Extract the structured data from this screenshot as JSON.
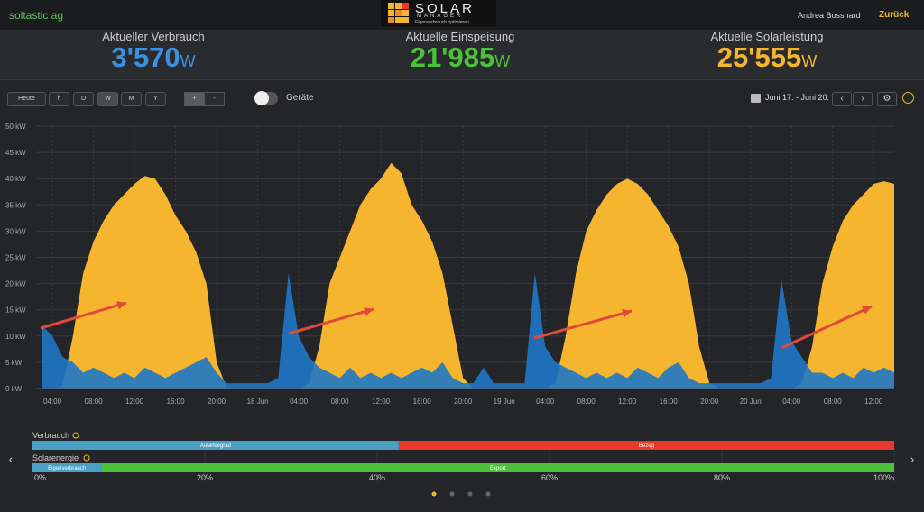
{
  "header": {
    "brand": "soltastic ag",
    "logo_title": "SOLAR",
    "logo_subtitle": "MANAGER",
    "logo_tagline": "Eigenverbrauch optimieren",
    "user": "Andrea Bosshard",
    "back": "Zurück"
  },
  "stats": [
    {
      "label": "Aktueller Verbrauch",
      "value": "3'570",
      "unit": "W",
      "color": "#3d8fe0"
    },
    {
      "label": "Aktuelle Einspeisung",
      "value": "21'985",
      "unit": "W",
      "color": "#4cc13a"
    },
    {
      "label": "Aktuelle Solarleistung",
      "value": "25'555",
      "unit": "W",
      "color": "#f5b52e"
    }
  ],
  "controls": {
    "periods": [
      "Heute",
      "h",
      "D",
      "W",
      "M",
      "Y"
    ],
    "zoom": [
      "+",
      "-"
    ],
    "toggle": "Geräte",
    "range": "Juni 17. - Juni 20."
  },
  "chart_data": {
    "type": "area",
    "ylim": [
      0,
      50
    ],
    "yticks": [
      {
        "value": 0,
        "label": "0 kW"
      },
      {
        "value": 5,
        "label": "5 kW"
      },
      {
        "value": 10,
        "label": "10 kW"
      },
      {
        "value": 15,
        "label": "15 kW"
      },
      {
        "value": 20,
        "label": "20 kW"
      },
      {
        "value": 25,
        "label": "25 kW"
      },
      {
        "value": 30,
        "label": "30 kW"
      },
      {
        "value": 35,
        "label": "35 kW"
      },
      {
        "value": 40,
        "label": "40 kW"
      },
      {
        "value": 45,
        "label": "45 kW"
      },
      {
        "value": 50,
        "label": "50 kW"
      }
    ],
    "xlim": [
      2.5,
      86
    ],
    "xticks": [
      {
        "value": 4,
        "label": "04:00"
      },
      {
        "value": 8,
        "label": "08:00"
      },
      {
        "value": 12,
        "label": "12:00"
      },
      {
        "value": 16,
        "label": "16:00"
      },
      {
        "value": 20,
        "label": "20:00"
      },
      {
        "value": 24,
        "label": "18 Jun"
      },
      {
        "value": 28,
        "label": "04:00"
      },
      {
        "value": 32,
        "label": "08:00"
      },
      {
        "value": 36,
        "label": "12:00"
      },
      {
        "value": 40,
        "label": "16:00"
      },
      {
        "value": 44,
        "label": "20:00"
      },
      {
        "value": 48,
        "label": "19 Jun"
      },
      {
        "value": 52,
        "label": "04:00"
      },
      {
        "value": 56,
        "label": "08:00"
      },
      {
        "value": 60,
        "label": "12:00"
      },
      {
        "value": 64,
        "label": "16:00"
      },
      {
        "value": 68,
        "label": "20:00"
      },
      {
        "value": 72,
        "label": "20 Jun"
      },
      {
        "value": 76,
        "label": "04:00"
      },
      {
        "value": 80,
        "label": "08:00"
      },
      {
        "value": 84,
        "label": "12:00"
      }
    ],
    "grid": true,
    "x": [
      3,
      4,
      5,
      6,
      7,
      8,
      9,
      10,
      11,
      12,
      13,
      14,
      15,
      16,
      17,
      18,
      19,
      20,
      21,
      22,
      23,
      24,
      25,
      26,
      27,
      28,
      29,
      30,
      31,
      32,
      33,
      34,
      35,
      36,
      37,
      38,
      39,
      40,
      41,
      42,
      43,
      44,
      45,
      46,
      47,
      48,
      49,
      50,
      51,
      52,
      53,
      54,
      55,
      56,
      57,
      58,
      59,
      60,
      61,
      62,
      63,
      64,
      65,
      66,
      67,
      68,
      69,
      70,
      71,
      72,
      73,
      74,
      75,
      76,
      77,
      78,
      79,
      80,
      81,
      82,
      83,
      84,
      85,
      86
    ],
    "series": [
      {
        "color": "#f5b52e",
        "values": [
          0,
          0,
          0.5,
          10,
          22,
          28,
          32,
          35,
          37,
          39,
          40.5,
          40,
          37,
          33,
          30,
          26,
          20,
          5,
          0,
          0,
          0,
          0,
          0,
          0,
          0,
          0,
          1,
          8,
          20,
          25,
          30,
          35,
          38,
          40,
          43,
          41,
          35,
          32,
          28,
          22,
          12,
          2,
          0,
          0,
          0,
          0,
          0,
          0,
          0,
          0,
          1,
          10,
          22,
          30,
          34,
          37,
          39,
          40,
          39,
          37,
          34,
          31,
          27,
          20,
          8,
          1,
          0,
          0,
          0,
          0,
          0,
          0,
          0,
          0,
          1,
          8,
          20,
          27,
          32,
          35,
          37,
          39,
          39.5,
          39
        ]
      },
      {
        "color": "#1f78c8",
        "values": [
          12,
          10,
          6,
          5,
          3,
          4,
          3,
          2,
          3,
          2,
          4,
          3,
          2,
          3,
          4,
          5,
          6,
          3,
          1,
          1,
          1,
          1,
          1,
          2,
          22,
          10,
          6,
          4,
          3,
          2,
          4,
          2,
          3,
          2,
          3,
          2,
          3,
          4,
          3,
          5,
          2,
          1,
          1,
          4,
          1,
          1,
          1,
          1,
          22,
          8,
          5,
          4,
          3,
          2,
          3,
          2,
          3,
          2,
          4,
          3,
          2,
          4,
          5,
          2,
          1,
          1,
          1,
          1,
          1,
          1,
          1,
          2,
          21,
          9,
          6,
          3,
          3,
          2,
          3,
          2,
          4,
          3,
          4,
          3
        ]
      }
    ]
  },
  "shares": {
    "xlim": [
      0,
      100
    ],
    "xticks": [
      {
        "value": 0,
        "label": "0%"
      },
      {
        "value": 20,
        "label": "20%"
      },
      {
        "value": 40,
        "label": "40%"
      },
      {
        "value": 60,
        "label": "60%"
      },
      {
        "value": 80,
        "label": "80%"
      },
      {
        "value": 100,
        "label": "100%"
      }
    ],
    "rows": [
      {
        "title": "Verbrauch",
        "segments": [
          {
            "name": "Autarkiegrad",
            "value": 42.5,
            "color": "#4a9fc4"
          },
          {
            "name": "Bezug",
            "value": 57.5,
            "color": "#e8392b"
          }
        ]
      },
      {
        "title": "Solarenergie",
        "segments": [
          {
            "name": "Eigenverbrauch",
            "value": 8,
            "color": "#4a9fc4"
          },
          {
            "name": "Export",
            "value": 92,
            "color": "#4cc13a"
          }
        ]
      }
    ]
  }
}
